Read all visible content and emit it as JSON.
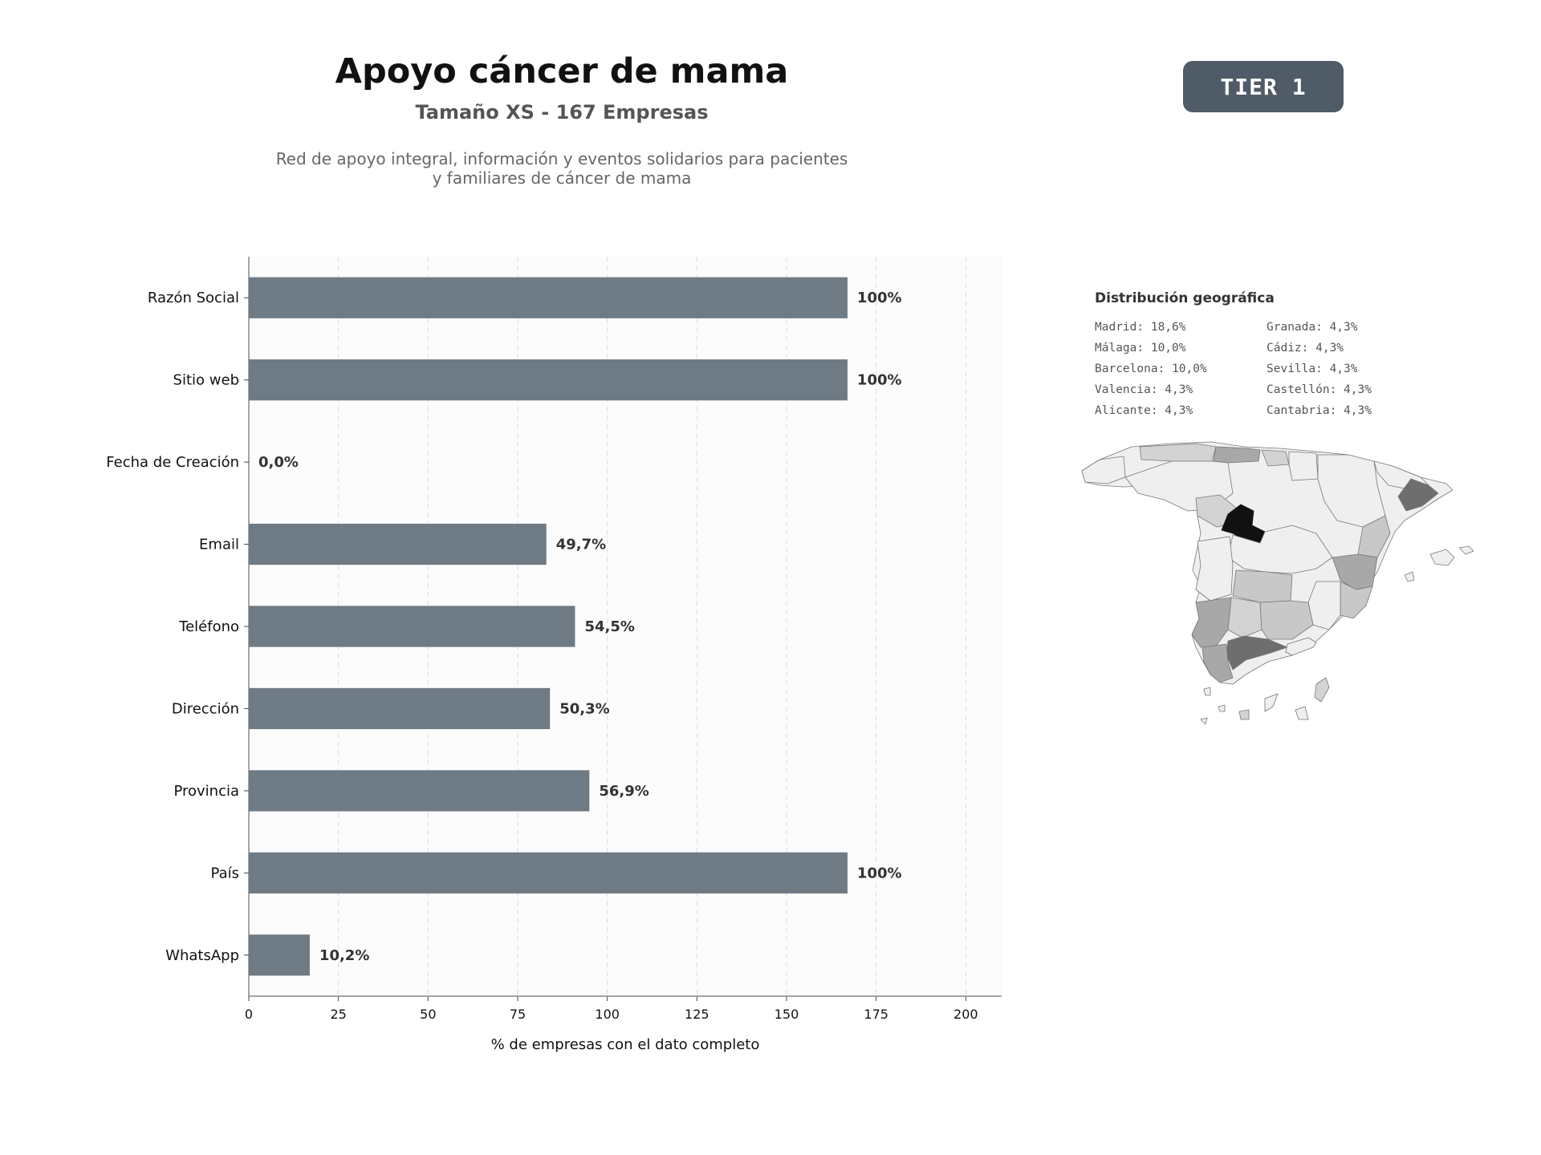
{
  "header": {
    "title": "Apoyo cáncer de mama",
    "subtitle": "Tamaño XS - 167 Empresas",
    "description_line1": "Red de apoyo integral, información y eventos solidarios para pacientes",
    "description_line2": "y familiares de cáncer de mama",
    "tier_badge": "TIER 1"
  },
  "chart_data": {
    "type": "bar",
    "orientation": "horizontal",
    "categories": [
      "Razón Social",
      "Sitio web",
      "Fecha de Creación",
      "Email",
      "Teléfono",
      "Dirección",
      "Provincia",
      "País",
      "WhatsApp"
    ],
    "values": [
      167,
      167,
      0,
      83,
      91,
      84,
      95,
      167,
      17
    ],
    "data_labels": [
      "100%",
      "100%",
      "0,0%",
      "49,7%",
      "54,5%",
      "50,3%",
      "56,9%",
      "100%",
      "10,2%"
    ],
    "xlabel": "% de empresas con el dato completo",
    "xlim": [
      0,
      210
    ],
    "xticks": [
      0,
      25,
      50,
      75,
      100,
      125,
      150,
      175,
      200
    ],
    "grid": "vertical-dashed",
    "bar_color": "#6e7a84",
    "background_color": "#fcfcfc"
  },
  "geo": {
    "title": "Distribución geográfica",
    "items": [
      {
        "text": "Madrid: 18,6%"
      },
      {
        "text": "Granada: 4,3%"
      },
      {
        "text": "Málaga: 10,0%"
      },
      {
        "text": "Cádiz: 4,3%"
      },
      {
        "text": "Barcelona: 10,0%"
      },
      {
        "text": "Sevilla: 4,3%"
      },
      {
        "text": "Valencia: 4,3%"
      },
      {
        "text": "Castellón: 4,3%"
      },
      {
        "text": "Alicante: 4,3%"
      },
      {
        "text": "Cantabria: 4,3%"
      }
    ],
    "map_colors": {
      "madrid": "#111111",
      "high": "#6e6e6e",
      "mid": "#a8a8a8",
      "low": "#c8c8c8",
      "none": "#efefef"
    }
  }
}
